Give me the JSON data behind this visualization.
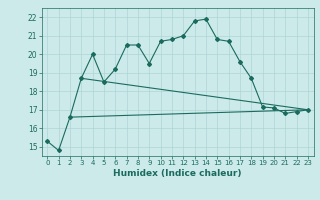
{
  "xlabel": "Humidex (Indice chaleur)",
  "background_color": "#cdeaea",
  "grid_color": "#aed4d4",
  "line_color": "#1a6b5e",
  "xlim": [
    -0.5,
    23.5
  ],
  "ylim": [
    14.5,
    22.5
  ],
  "yticks": [
    15,
    16,
    17,
    18,
    19,
    20,
    21,
    22
  ],
  "xticks": [
    0,
    1,
    2,
    3,
    4,
    5,
    6,
    7,
    8,
    9,
    10,
    11,
    12,
    13,
    14,
    15,
    16,
    17,
    18,
    19,
    20,
    21,
    22,
    23
  ],
  "main_x": [
    0,
    1,
    2,
    3,
    4,
    5,
    6,
    7,
    8,
    9,
    10,
    11,
    12,
    13,
    14,
    15,
    16,
    17,
    18,
    19,
    20,
    21,
    22,
    23
  ],
  "main_y": [
    15.3,
    14.8,
    16.6,
    18.7,
    20.0,
    18.5,
    19.2,
    20.5,
    20.5,
    19.5,
    20.7,
    20.8,
    21.0,
    21.8,
    21.9,
    20.8,
    20.7,
    19.6,
    18.7,
    17.15,
    17.1,
    16.8,
    16.9,
    17.0
  ],
  "line1_x": [
    2,
    23
  ],
  "line1_y": [
    16.6,
    17.0
  ],
  "line2_x": [
    3,
    23
  ],
  "line2_y": [
    18.7,
    17.0
  ]
}
